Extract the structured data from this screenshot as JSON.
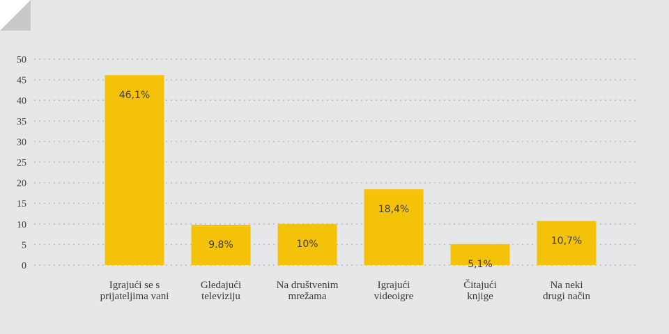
{
  "colors": {
    "background": "#e6e7e8",
    "bar": "#f5c20a",
    "grid": "#b9babc",
    "corner_fold": "#c8c9cb"
  },
  "chart_data": {
    "type": "bar",
    "categories": [
      [
        "Igrajući se s",
        "prijateljima vani"
      ],
      [
        "Gledajući",
        "televiziju"
      ],
      [
        "Na društvenim",
        "mrežama"
      ],
      [
        "Igrajući",
        "videoigre"
      ],
      [
        "Čitajući",
        "knjige"
      ],
      [
        "Na neki",
        "drugi način"
      ]
    ],
    "values": [
      46.1,
      9.8,
      10,
      18.4,
      5.1,
      10.7
    ],
    "data_labels": [
      "46,1%",
      "9.8%",
      "10%",
      "18,4%",
      "5,1%",
      "10,7%"
    ],
    "ylim": [
      0,
      50
    ],
    "yticks": [
      0,
      5,
      10,
      15,
      20,
      25,
      30,
      35,
      40,
      45,
      50
    ],
    "grid": true,
    "title": "",
    "xlabel": "",
    "ylabel": ""
  }
}
